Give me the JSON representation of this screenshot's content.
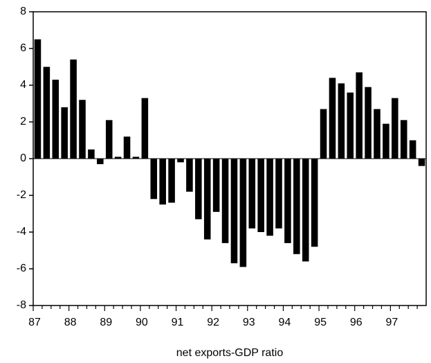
{
  "chart_data": {
    "type": "bar",
    "xlabel": "net exports-GDP ratio",
    "categories": [
      "87",
      null,
      null,
      null,
      "88",
      null,
      null,
      null,
      "89",
      null,
      null,
      null,
      "90",
      null,
      null,
      null,
      "91",
      null,
      null,
      null,
      "92",
      null,
      null,
      null,
      "93",
      null,
      null,
      null,
      "94",
      null,
      null,
      null,
      "95",
      null,
      null,
      null,
      "96",
      null,
      null,
      null,
      "97",
      null,
      null,
      null
    ],
    "values": [
      6.5,
      5.0,
      4.3,
      2.8,
      5.4,
      3.2,
      0.5,
      -0.3,
      2.1,
      0.1,
      1.2,
      0.1,
      3.3,
      -2.2,
      -2.5,
      -2.4,
      -0.2,
      -1.8,
      -3.3,
      -4.4,
      -2.9,
      -4.6,
      -5.7,
      -5.9,
      -3.8,
      -4.0,
      -4.2,
      -3.8,
      -4.6,
      -5.2,
      -5.6,
      -4.8,
      2.7,
      4.4,
      4.1,
      3.6,
      4.7,
      3.9,
      2.7,
      1.9,
      3.3,
      2.1,
      1.0,
      -0.4
    ],
    "color": "#000000",
    "ylim": [
      -8,
      8
    ],
    "yticks": [
      -8,
      -6,
      -4,
      -2,
      0,
      2,
      4,
      6,
      8
    ]
  }
}
